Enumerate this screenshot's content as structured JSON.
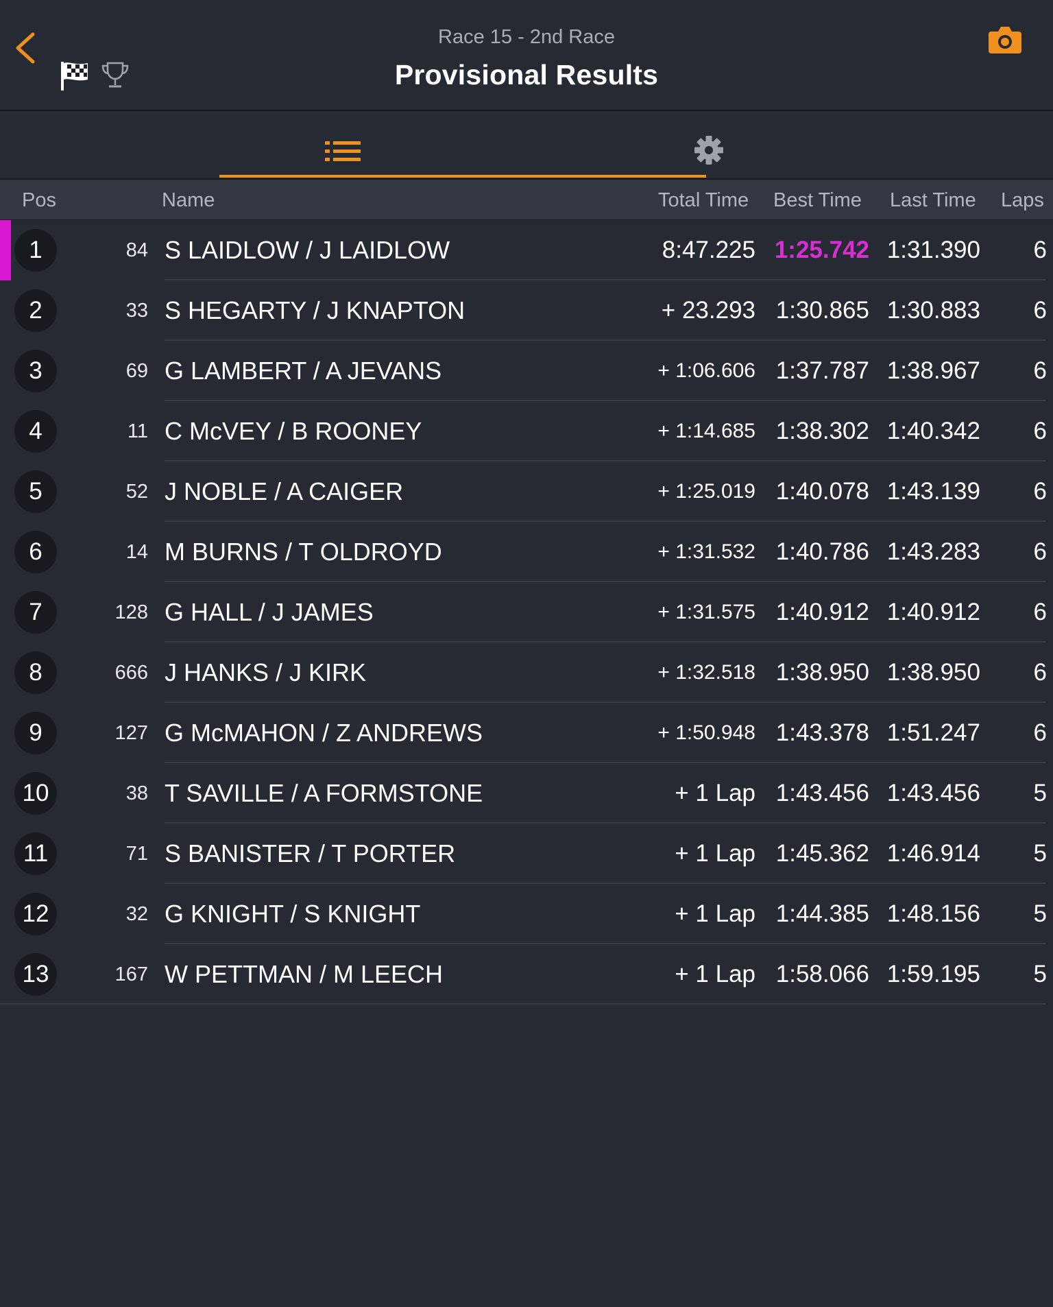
{
  "header": {
    "subtitle": "Race 15 - 2nd Race",
    "title": "Provisional Results",
    "icons": {
      "back": "chevron-left-icon",
      "flag": "checkered-flag-icon",
      "trophy": "trophy-icon",
      "camera": "camera-icon"
    }
  },
  "tabs": [
    {
      "name": "results-list",
      "icon": "list-icon",
      "active": true
    },
    {
      "name": "settings",
      "icon": "gear-icon",
      "active": false
    }
  ],
  "colors": {
    "accent": "#f0901e",
    "fastest_lap": "#d92ed3",
    "background": "#262a33"
  },
  "columns": {
    "pos": "Pos",
    "name": "Name",
    "total_time": "Total Time",
    "best_time": "Best Time",
    "last_time": "Last Time",
    "laps": "Laps"
  },
  "rows": [
    {
      "pos": "1",
      "num": "84",
      "name": "S LAIDLOW / J LAIDLOW",
      "total": "8:47.225",
      "best": "1:25.742",
      "last": "1:31.390",
      "laps": "6"
    },
    {
      "pos": "2",
      "num": "33",
      "name": "S HEGARTY / J KNAPTON",
      "total": "+ 23.293",
      "best": "1:30.865",
      "last": "1:30.883",
      "laps": "6"
    },
    {
      "pos": "3",
      "num": "69",
      "name": "G LAMBERT / A JEVANS",
      "total": "+ 1:06.606",
      "best": "1:37.787",
      "last": "1:38.967",
      "laps": "6"
    },
    {
      "pos": "4",
      "num": "11",
      "name": "C McVEY / B ROONEY",
      "total": "+ 1:14.685",
      "best": "1:38.302",
      "last": "1:40.342",
      "laps": "6"
    },
    {
      "pos": "5",
      "num": "52",
      "name": "J NOBLE / A CAIGER",
      "total": "+ 1:25.019",
      "best": "1:40.078",
      "last": "1:43.139",
      "laps": "6"
    },
    {
      "pos": "6",
      "num": "14",
      "name": "M BURNS / T OLDROYD",
      "total": "+ 1:31.532",
      "best": "1:40.786",
      "last": "1:43.283",
      "laps": "6"
    },
    {
      "pos": "7",
      "num": "128",
      "name": "G HALL / J JAMES",
      "total": "+ 1:31.575",
      "best": "1:40.912",
      "last": "1:40.912",
      "laps": "6"
    },
    {
      "pos": "8",
      "num": "666",
      "name": "J HANKS / J KIRK",
      "total": "+ 1:32.518",
      "best": "1:38.950",
      "last": "1:38.950",
      "laps": "6"
    },
    {
      "pos": "9",
      "num": "127",
      "name": "G McMAHON / Z ANDREWS",
      "total": "+ 1:50.948",
      "best": "1:43.378",
      "last": "1:51.247",
      "laps": "6"
    },
    {
      "pos": "10",
      "num": "38",
      "name": "T SAVILLE / A FORMSTONE",
      "total": "+ 1 Lap",
      "best": "1:43.456",
      "last": "1:43.456",
      "laps": "5"
    },
    {
      "pos": "11",
      "num": "71",
      "name": "S BANISTER / T PORTER",
      "total": "+ 1 Lap",
      "best": "1:45.362",
      "last": "1:46.914",
      "laps": "5"
    },
    {
      "pos": "12",
      "num": "32",
      "name": "G KNIGHT / S KNIGHT",
      "total": "+ 1 Lap",
      "best": "1:44.385",
      "last": "1:48.156",
      "laps": "5"
    },
    {
      "pos": "13",
      "num": "167",
      "name": "W PETTMAN / M LEECH",
      "total": "+ 1 Lap",
      "best": "1:58.066",
      "last": "1:59.195",
      "laps": "5"
    }
  ]
}
